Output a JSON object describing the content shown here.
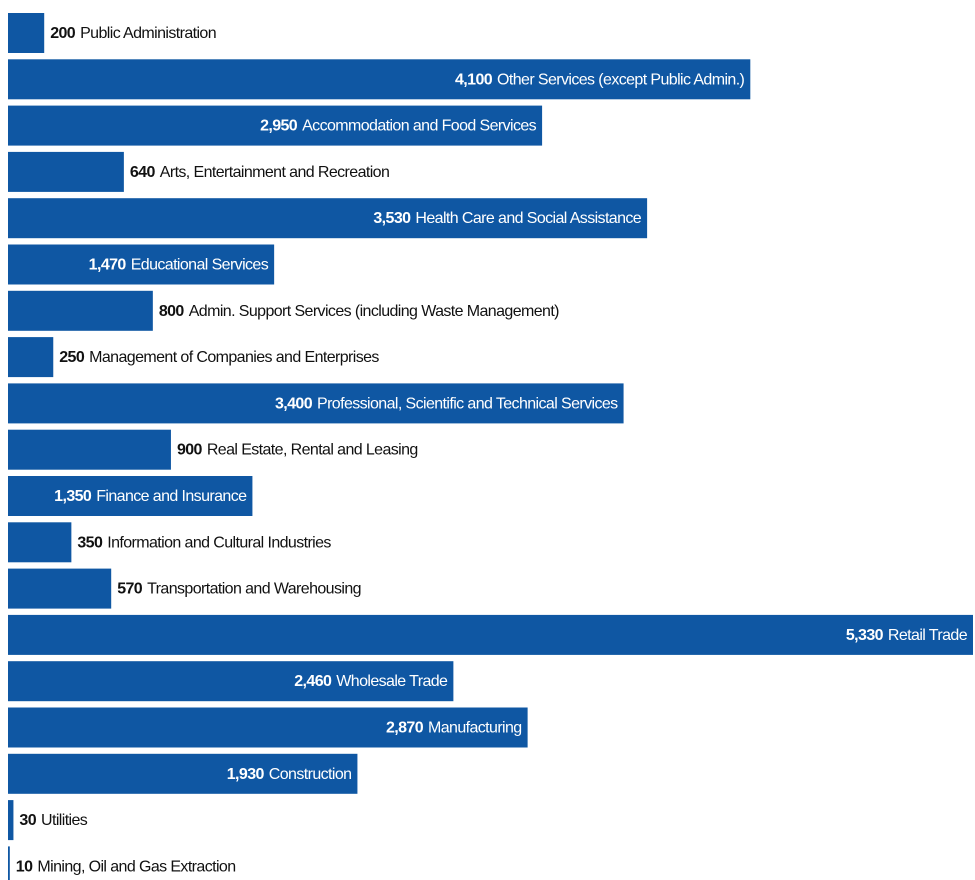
{
  "chart_data": {
    "type": "bar",
    "orientation": "horizontal",
    "color": "#0f57a3",
    "categories": [
      "Public Administration",
      "Other Services (except Public Admin.)",
      "Accommodation and Food Services",
      "Arts, Entertainment and Recreation",
      "Health Care and Social Assistance",
      "Educational Services",
      "Admin. Support Services (including Waste Management)",
      "Management of Companies and Enterprises",
      "Professional, Scientific and Technical Services",
      "Real Estate, Rental and Leasing",
      "Finance and Insurance",
      "Information and Cultural Industries",
      "Transportation and Warehousing",
      "Retail Trade",
      "Wholesale Trade",
      "Manufacturing",
      "Construction",
      "Utilities",
      "Mining, Oil and Gas Extraction"
    ],
    "values": [
      200,
      4100,
      2950,
      640,
      3530,
      1470,
      800,
      250,
      3400,
      900,
      1350,
      350,
      570,
      5330,
      2460,
      2870,
      1930,
      30,
      10
    ],
    "value_labels": [
      "200",
      "4,100",
      "2,950",
      "640",
      "3,530",
      "1,470",
      "800",
      "250",
      "3,400",
      "900",
      "1,350",
      "350",
      "570",
      "5,330",
      "2,460",
      "2,870",
      "1,930",
      "30",
      "10"
    ]
  }
}
